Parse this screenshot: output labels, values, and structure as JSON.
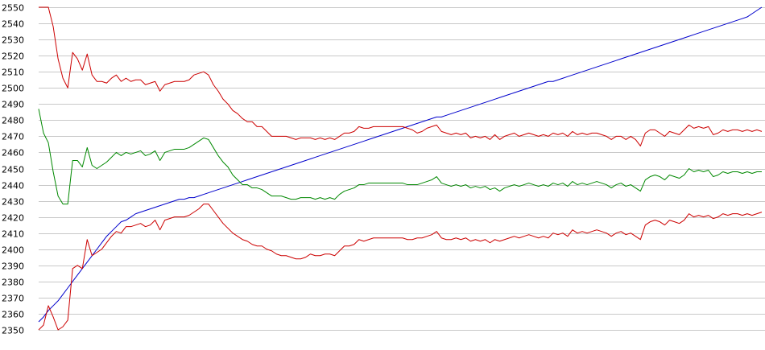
{
  "chart_data": {
    "type": "line",
    "title": "",
    "xlabel": "",
    "ylabel": "",
    "ylim": [
      2350,
      2550
    ],
    "yticks": [
      2350,
      2360,
      2370,
      2380,
      2390,
      2400,
      2410,
      2420,
      2430,
      2440,
      2450,
      2460,
      2470,
      2480,
      2490,
      2500,
      2510,
      2520,
      2530,
      2540,
      2550
    ],
    "grid": true,
    "legend": "none",
    "x_count": 150,
    "series": [
      {
        "color": "#0000cc",
        "values": [
          2355,
          2358,
          2362,
          2365,
          2368,
          2372,
          2376,
          2380,
          2384,
          2388,
          2392,
          2396,
          2400,
          2404,
          2408,
          2411,
          2414,
          2417,
          2418,
          2420,
          2422,
          2423,
          2424,
          2425,
          2426,
          2427,
          2428,
          2429,
          2430,
          2431,
          2431,
          2432,
          2432,
          2433,
          2434,
          2435,
          2436,
          2437,
          2438,
          2439,
          2440,
          2441,
          2442,
          2443,
          2444,
          2445,
          2446,
          2447,
          2448,
          2449,
          2450,
          2451,
          2452,
          2453,
          2454,
          2455,
          2456,
          2457,
          2458,
          2459,
          2460,
          2461,
          2462,
          2463,
          2464,
          2465,
          2466,
          2467,
          2468,
          2469,
          2470,
          2471,
          2472,
          2473,
          2474,
          2475,
          2476,
          2477,
          2478,
          2479,
          2480,
          2481,
          2482,
          2482,
          2483,
          2484,
          2485,
          2486,
          2487,
          2488,
          2489,
          2490,
          2491,
          2492,
          2493,
          2494,
          2495,
          2496,
          2497,
          2498,
          2499,
          2500,
          2501,
          2502,
          2503,
          2504,
          2504,
          2505,
          2506,
          2507,
          2508,
          2509,
          2510,
          2511,
          2512,
          2513,
          2514,
          2515,
          2516,
          2517,
          2518,
          2519,
          2520,
          2521,
          2522,
          2523,
          2524,
          2525,
          2526,
          2527,
          2528,
          2529,
          2530,
          2531,
          2532,
          2533,
          2534,
          2535,
          2536,
          2537,
          2538,
          2539,
          2540,
          2541,
          2542,
          2543,
          2544,
          2546,
          2548,
          2550
        ]
      },
      {
        "color": "#cc0000",
        "values": [
          2550,
          2550,
          2550,
          2538,
          2518,
          2506,
          2500,
          2522,
          2518,
          2511,
          2521,
          2508,
          2504,
          2504,
          2503,
          2506,
          2508,
          2504,
          2506,
          2504,
          2505,
          2505,
          2502,
          2503,
          2504,
          2498,
          2502,
          2503,
          2504,
          2504,
          2504,
          2505,
          2508,
          2509,
          2510,
          2508,
          2502,
          2498,
          2493,
          2490,
          2486,
          2484,
          2481,
          2479,
          2479,
          2476,
          2476,
          2473,
          2470,
          2470,
          2470,
          2470,
          2469,
          2468,
          2469,
          2469,
          2469,
          2468,
          2469,
          2468,
          2469,
          2468,
          2470,
          2472,
          2472,
          2473,
          2476,
          2475,
          2475,
          2476,
          2476,
          2476,
          2476,
          2476,
          2476,
          2476,
          2475,
          2474,
          2472,
          2473,
          2475,
          2476,
          2477,
          2473,
          2472,
          2471,
          2472,
          2471,
          2472,
          2469,
          2470,
          2469,
          2470,
          2468,
          2471,
          2468,
          2470,
          2471,
          2472,
          2470,
          2471,
          2472,
          2471,
          2470,
          2471,
          2470,
          2472,
          2471,
          2472,
          2470,
          2473,
          2471,
          2472,
          2471,
          2472,
          2472,
          2471,
          2470,
          2468,
          2470,
          2470,
          2468,
          2470,
          2468,
          2464,
          2472,
          2474,
          2474,
          2472,
          2470,
          2473,
          2472,
          2471,
          2474,
          2477,
          2475,
          2476,
          2475,
          2476,
          2471,
          2472,
          2474,
          2473,
          2474,
          2474,
          2473,
          2474,
          2473,
          2474,
          2473
        ]
      },
      {
        "color": "#008800",
        "values": [
          2487,
          2472,
          2466,
          2448,
          2433,
          2428,
          2428,
          2455,
          2455,
          2451,
          2463,
          2452,
          2450,
          2452,
          2454,
          2457,
          2460,
          2458,
          2460,
          2459,
          2460,
          2461,
          2458,
          2459,
          2461,
          2455,
          2460,
          2461,
          2462,
          2462,
          2462,
          2463,
          2465,
          2467,
          2469,
          2468,
          2463,
          2458,
          2454,
          2451,
          2446,
          2443,
          2440,
          2440,
          2438,
          2438,
          2437,
          2435,
          2433,
          2433,
          2433,
          2432,
          2431,
          2431,
          2432,
          2432,
          2432,
          2431,
          2432,
          2431,
          2432,
          2431,
          2434,
          2436,
          2437,
          2438,
          2440,
          2440,
          2441,
          2441,
          2441,
          2441,
          2441,
          2441,
          2441,
          2441,
          2440,
          2440,
          2440,
          2441,
          2442,
          2443,
          2445,
          2441,
          2440,
          2439,
          2440,
          2439,
          2440,
          2438,
          2439,
          2438,
          2439,
          2437,
          2438,
          2436,
          2438,
          2439,
          2440,
          2439,
          2440,
          2441,
          2440,
          2439,
          2440,
          2439,
          2441,
          2440,
          2441,
          2439,
          2442,
          2440,
          2441,
          2440,
          2441,
          2442,
          2441,
          2440,
          2438,
          2440,
          2441,
          2439,
          2440,
          2438,
          2436,
          2443,
          2445,
          2446,
          2445,
          2443,
          2446,
          2445,
          2444,
          2446,
          2450,
          2448,
          2449,
          2448,
          2449,
          2445,
          2446,
          2448,
          2447,
          2448,
          2448,
          2447,
          2448,
          2447,
          2448,
          2448
        ]
      },
      {
        "color": "#cc0000",
        "values": [
          2350,
          2353,
          2365,
          2358,
          2350,
          2352,
          2356,
          2388,
          2390,
          2388,
          2406,
          2396,
          2398,
          2400,
          2404,
          2408,
          2411,
          2410,
          2414,
          2414,
          2415,
          2416,
          2414,
          2415,
          2418,
          2412,
          2418,
          2419,
          2420,
          2420,
          2420,
          2421,
          2423,
          2425,
          2428,
          2428,
          2424,
          2420,
          2416,
          2413,
          2410,
          2408,
          2406,
          2405,
          2403,
          2402,
          2402,
          2400,
          2399,
          2397,
          2396,
          2396,
          2395,
          2394,
          2394,
          2395,
          2397,
          2396,
          2396,
          2397,
          2397,
          2396,
          2399,
          2402,
          2402,
          2403,
          2406,
          2405,
          2406,
          2407,
          2407,
          2407,
          2407,
          2407,
          2407,
          2407,
          2406,
          2406,
          2407,
          2407,
          2408,
          2409,
          2411,
          2407,
          2406,
          2406,
          2407,
          2406,
          2407,
          2405,
          2406,
          2405,
          2406,
          2404,
          2406,
          2405,
          2406,
          2407,
          2408,
          2407,
          2408,
          2409,
          2408,
          2407,
          2408,
          2407,
          2410,
          2409,
          2410,
          2408,
          2412,
          2410,
          2411,
          2410,
          2411,
          2412,
          2411,
          2410,
          2408,
          2410,
          2411,
          2409,
          2410,
          2408,
          2406,
          2415,
          2417,
          2418,
          2417,
          2415,
          2418,
          2417,
          2416,
          2418,
          2422,
          2420,
          2421,
          2420,
          2421,
          2419,
          2420,
          2422,
          2421,
          2422,
          2422,
          2421,
          2422,
          2421,
          2422,
          2423
        ]
      }
    ]
  }
}
